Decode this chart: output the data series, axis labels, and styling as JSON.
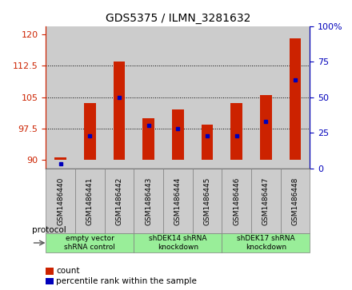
{
  "title": "GDS5375 / ILMN_3281632",
  "samples": [
    "GSM1486440",
    "GSM1486441",
    "GSM1486442",
    "GSM1486443",
    "GSM1486444",
    "GSM1486445",
    "GSM1486446",
    "GSM1486447",
    "GSM1486448"
  ],
  "count_values": [
    90.5,
    103.5,
    113.5,
    100.0,
    102.0,
    98.5,
    103.5,
    105.5,
    119.0
  ],
  "percentile_values": [
    3,
    23,
    50,
    30,
    28,
    23,
    23,
    33,
    62
  ],
  "count_base": 90,
  "ylim_left": [
    88,
    122
  ],
  "ylim_right": [
    0,
    100
  ],
  "yticks_left": [
    90,
    97.5,
    105,
    112.5,
    120
  ],
  "yticks_right": [
    0,
    25,
    50,
    75,
    100
  ],
  "groups": [
    {
      "label": "empty vector\nshRNA control",
      "start": 0,
      "end": 3,
      "color": "#99ee99"
    },
    {
      "label": "shDEK14 shRNA\nknockdown",
      "start": 3,
      "end": 6,
      "color": "#99ee99"
    },
    {
      "label": "shDEK17 shRNA\nknockdown",
      "start": 6,
      "end": 9,
      "color": "#99ee99"
    }
  ],
  "bar_color": "#cc2200",
  "dot_color": "#0000bb",
  "bg_color": "#cccccc",
  "legend_count": "count",
  "legend_pct": "percentile rank within the sample"
}
